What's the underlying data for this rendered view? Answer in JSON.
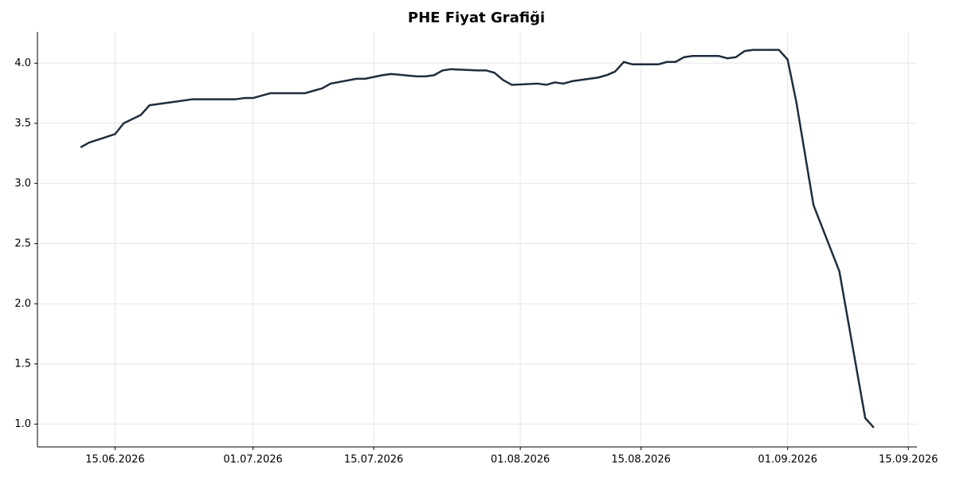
{
  "chart_data": {
    "type": "line",
    "title": "PHE Fiyat Grafiği",
    "x": [
      "2026-06-11",
      "2026-06-12",
      "2026-06-15",
      "2026-06-16",
      "2026-06-18",
      "2026-06-19",
      "2026-06-22",
      "2026-06-24",
      "2026-06-25",
      "2026-06-29",
      "2026-06-30",
      "2026-07-01",
      "2026-07-03",
      "2026-07-07",
      "2026-07-08",
      "2026-07-09",
      "2026-07-10",
      "2026-07-13",
      "2026-07-14",
      "2026-07-16",
      "2026-07-17",
      "2026-07-20",
      "2026-07-21",
      "2026-07-22",
      "2026-07-23",
      "2026-07-24",
      "2026-07-27",
      "2026-07-28",
      "2026-07-29",
      "2026-07-30",
      "2026-07-31",
      "2026-08-03",
      "2026-08-04",
      "2026-08-05",
      "2026-08-06",
      "2026-08-07",
      "2026-08-10",
      "2026-08-11",
      "2026-08-12",
      "2026-08-13",
      "2026-08-14",
      "2026-08-17",
      "2026-08-18",
      "2026-08-19",
      "2026-08-20",
      "2026-08-21",
      "2026-08-24",
      "2026-08-25",
      "2026-08-26",
      "2026-08-27",
      "2026-08-28",
      "2026-08-31",
      "2026-09-01",
      "2026-09-02",
      "2026-09-04",
      "2026-09-07",
      "2026-09-10",
      "2026-09-11"
    ],
    "series": [
      {
        "name": "PHE",
        "color": "#1f2d3d",
        "values": [
          3.3,
          3.34,
          3.41,
          3.5,
          3.57,
          3.65,
          3.68,
          3.7,
          3.7,
          3.7,
          3.71,
          3.71,
          3.75,
          3.75,
          3.77,
          3.79,
          3.83,
          3.87,
          3.87,
          3.9,
          3.91,
          3.89,
          3.89,
          3.9,
          3.94,
          3.95,
          3.94,
          3.94,
          3.92,
          3.86,
          3.82,
          3.83,
          3.82,
          3.84,
          3.83,
          3.85,
          3.88,
          3.9,
          3.93,
          4.01,
          3.99,
          3.99,
          4.01,
          4.01,
          4.05,
          4.06,
          4.06,
          4.04,
          4.05,
          4.1,
          4.11,
          4.11,
          4.03,
          3.68,
          2.82,
          2.27,
          1.05,
          0.97
        ]
      }
    ],
    "xlim": [
      "2026-06-06",
      "2026-09-16"
    ],
    "xticks": [
      {
        "value": "2026-06-15",
        "label": "15.06.2026"
      },
      {
        "value": "2026-07-01",
        "label": "01.07.2026"
      },
      {
        "value": "2026-07-15",
        "label": "15.07.2026"
      },
      {
        "value": "2026-08-01",
        "label": "01.08.2026"
      },
      {
        "value": "2026-08-15",
        "label": "15.08.2026"
      },
      {
        "value": "2026-09-01",
        "label": "01.09.2026"
      },
      {
        "value": "2026-09-15",
        "label": "15.09.2026"
      }
    ],
    "ylim": [
      0.81,
      4.26
    ],
    "yticks": [
      {
        "value": 1,
        "label": "1.0"
      },
      {
        "value": 1.5,
        "label": "1.5"
      },
      {
        "value": 2,
        "label": "2.0"
      },
      {
        "value": 2.5,
        "label": "2.5"
      },
      {
        "value": 3,
        "label": "3.0"
      },
      {
        "value": 3.5,
        "label": "3.5"
      },
      {
        "value": 4,
        "label": "4.0"
      }
    ],
    "grid": true
  }
}
